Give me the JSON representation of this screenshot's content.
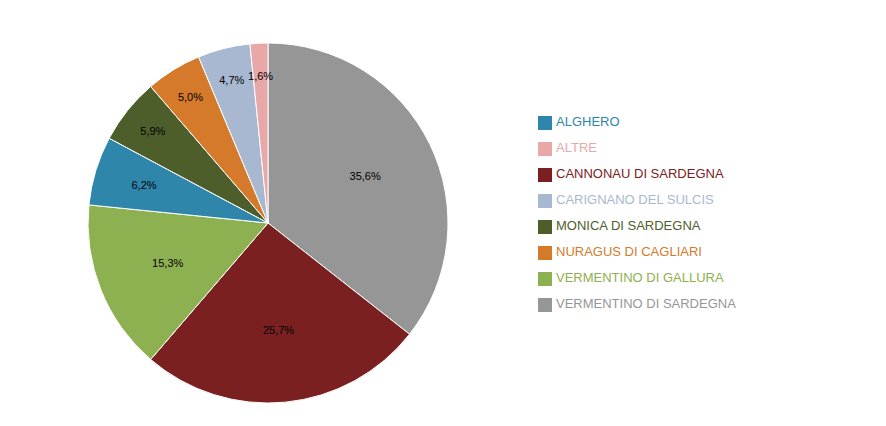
{
  "chart_data": {
    "type": "pie",
    "categories": [
      "VERMENTINO DI SARDEGNA",
      "CANNONAU DI SARDEGNA",
      "VERMENTINO DI GALLURA",
      "ALGHERO",
      "MONICA DI SARDEGNA",
      "NURAGUS DI CAGLIARI",
      "CARIGNANO DEL SULCIS",
      "ALTRE"
    ],
    "values": [
      35.6,
      25.7,
      15.3,
      6.2,
      5.9,
      5.0,
      4.7,
      1.6
    ],
    "value_labels": [
      "35,6%",
      "25,7%",
      "15,3%",
      "6,2%",
      "5,9%",
      "5,0%",
      "4,7%",
      "1,6%"
    ],
    "colors": [
      "#969696",
      "#7B2020",
      "#8DB050",
      "#2E86AB",
      "#4D5E2B",
      "#D47A2A",
      "#A8B8D0",
      "#E8A8A8"
    ],
    "legend": "right"
  }
}
